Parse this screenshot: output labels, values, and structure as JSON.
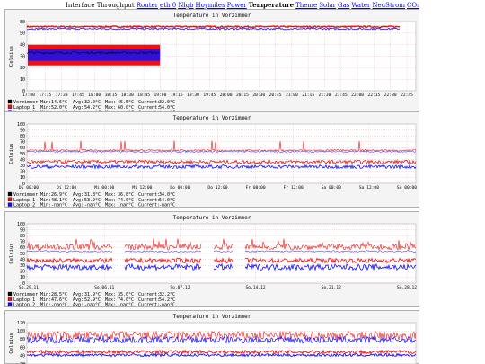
{
  "nav": {
    "prefix": "Interface Throughput",
    "items": [
      {
        "label": "Router",
        "current": false
      },
      {
        "label": "eth 0",
        "current": false
      },
      {
        "label": "Nlgb",
        "current": false
      },
      {
        "label": "Hoymiles",
        "current": false
      },
      {
        "label": "Power",
        "current": false
      },
      {
        "label": "Temperature",
        "current": true
      },
      {
        "label": "Theme",
        "current": false
      },
      {
        "label": "Solar",
        "current": false
      },
      {
        "label": "Gas",
        "current": false
      },
      {
        "label": "Water",
        "current": false
      },
      {
        "label": "NeuStrom",
        "current": false
      },
      {
        "label": "CO₂",
        "current": false
      }
    ]
  },
  "colors": {
    "vorzimmer": "#000000",
    "laptop1": "#ee1111",
    "laptop2": "#1010ff",
    "canvas": "#f4f4f4",
    "grid": "#e3b0b0"
  },
  "chart_data": [
    {
      "type": "line",
      "title": "Temperature in Vorzimmer",
      "ylabel": "Celsius",
      "ylim": [
        0,
        60
      ],
      "yticks": [
        "60",
        "50",
        "40",
        "30",
        "20",
        "10",
        "0"
      ],
      "xticks": [
        "17:00",
        "17:15",
        "17:30",
        "17:45",
        "18:00",
        "18:15",
        "18:30",
        "18:45",
        "19:00",
        "19:15",
        "19:30",
        "19:45",
        "20:00",
        "20:15",
        "20:30",
        "20:45",
        "21:00",
        "21:15",
        "21:30",
        "21:45",
        "22:00",
        "22:15",
        "22:30",
        "22:45"
      ],
      "legend": [
        {
          "name": "Vorzimmer",
          "min": "14.6°C",
          "avg": "32.0°C",
          "max": "45.5°C",
          "current": "32.0°C"
        },
        {
          "name": "Laptop 1",
          "min": "52.0°C",
          "avg": "54.2°C",
          "max": "60.0°C",
          "current": "54.0°C"
        },
        {
          "name": "Laptop 2",
          "min": "-nan°C",
          "avg": "-nan°C",
          "max": "-nan°C",
          "current": "-nan°C"
        }
      ]
    },
    {
      "type": "line",
      "title": "Temperature in Vorzimmer",
      "ylabel": "Celsius",
      "ylim": [
        0,
        100
      ],
      "yticks": [
        "100",
        "90",
        "80",
        "70",
        "60",
        "50",
        "40",
        "30",
        "20",
        "10",
        "0"
      ],
      "xticks": [
        "Di 00:00",
        "Di 12:00",
        "Mi 00:00",
        "Mi 12:00",
        "Do 00:00",
        "Do 12:00",
        "Fr 00:00",
        "Fr 12:00",
        "Sa 00:00",
        "Sa 12:00",
        "So 00:00"
      ],
      "legend": [
        {
          "name": "Vorzimmer",
          "min": "26.9°C",
          "avg": "31.8°C",
          "max": "36.8°C",
          "current": "34.0°C"
        },
        {
          "name": "Laptop 1",
          "min": "48.1°C",
          "avg": "53.9°C",
          "max": "74.0°C",
          "current": "54.0°C"
        },
        {
          "name": "Laptop 2",
          "min": "-nan°C",
          "avg": "-nan°C",
          "max": "-nan°C",
          "current": "-nan°C"
        }
      ]
    },
    {
      "type": "line",
      "title": "Temperature in Vorzimmer",
      "ylabel": "Celsius",
      "ylim": [
        0,
        100
      ],
      "yticks": [
        "100",
        "90",
        "80",
        "70",
        "60",
        "50",
        "40",
        "30",
        "20",
        "10",
        "0"
      ],
      "xticks": [
        "So,29.11",
        "So,06.11",
        "So,07.12",
        "So,14.12",
        "So,21.12",
        "So,28.12"
      ],
      "legend": [
        {
          "name": "Vorzimmer",
          "min": "28.5°C",
          "avg": "31.9°C",
          "max": "35.0°C",
          "current": "32.2°C"
        },
        {
          "name": "Laptop 1",
          "min": "47.6°C",
          "avg": "52.9°C",
          "max": "74.0°C",
          "current": "54.2°C"
        },
        {
          "name": "Laptop 2",
          "min": "-nan°C",
          "avg": "-nan°C",
          "max": "-nan°C",
          "current": "-nan°C"
        }
      ]
    },
    {
      "type": "line",
      "title": "Temperature in Vorzimmer",
      "ylabel": "Celsius",
      "ylim": [
        0,
        120
      ],
      "yticks": [
        "120",
        "100",
        "80",
        "60",
        "40",
        "20"
      ],
      "xticks": [],
      "legend": []
    }
  ]
}
